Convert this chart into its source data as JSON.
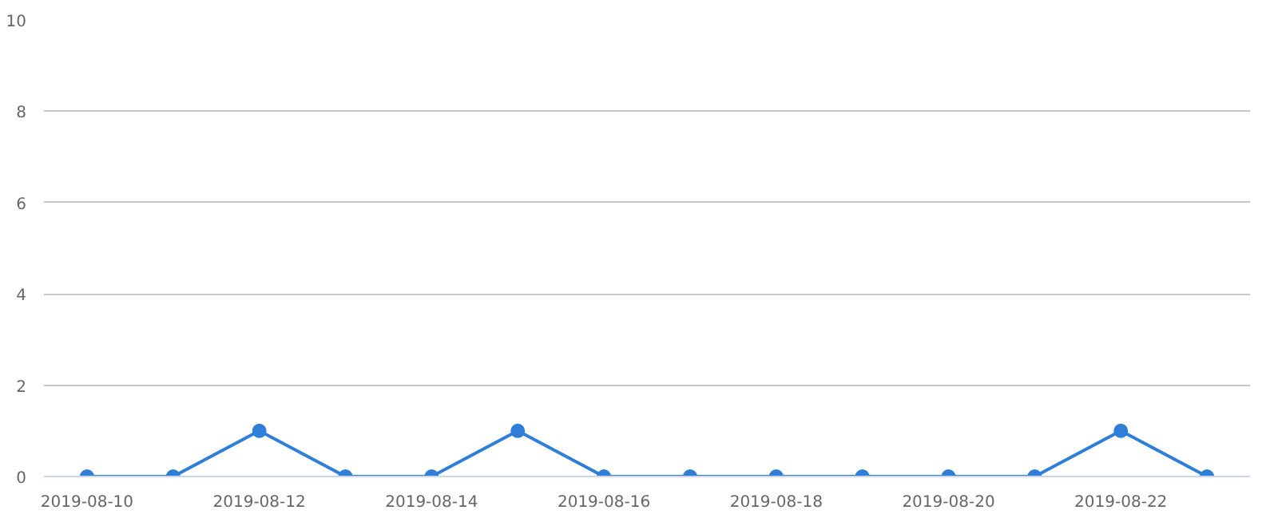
{
  "chart_data": {
    "type": "line",
    "categories": [
      "2019-08-10",
      null,
      "2019-08-12",
      null,
      "2019-08-14",
      null,
      "2019-08-16",
      null,
      "2019-08-18",
      null,
      "2019-08-20",
      null,
      "2019-08-22",
      null
    ],
    "series": [
      {
        "color": "#2f7ed8",
        "values": [
          0,
          0,
          1,
          0,
          0,
          1,
          0,
          0,
          0,
          0,
          0,
          0,
          1,
          0
        ]
      }
    ],
    "ylim": [
      0,
      10
    ],
    "yticks": [
      0,
      2,
      4,
      6,
      8,
      10
    ],
    "grid": "y",
    "marker": "circle"
  }
}
